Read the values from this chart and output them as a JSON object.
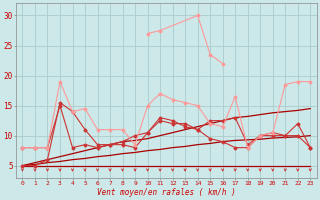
{
  "x": [
    0,
    1,
    2,
    3,
    4,
    5,
    6,
    7,
    8,
    9,
    10,
    11,
    12,
    13,
    14,
    15,
    16,
    17,
    18,
    19,
    20,
    21,
    22,
    23
  ],
  "line_flat": [
    5,
    5,
    5,
    5,
    5,
    5,
    5,
    5,
    5,
    5,
    5,
    5,
    5,
    5,
    5,
    5,
    5,
    5,
    5,
    5,
    5,
    5,
    5,
    5
  ],
  "line_slow": [
    5,
    5.2,
    5.5,
    5.7,
    6.0,
    6.2,
    6.5,
    6.7,
    7.0,
    7.2,
    7.5,
    7.7,
    8.0,
    8.2,
    8.5,
    8.7,
    9.0,
    9.2,
    9.3,
    9.4,
    9.6,
    9.7,
    9.8,
    10.0
  ],
  "line_med": [
    5,
    5.5,
    6.0,
    6.5,
    7.0,
    7.5,
    8.0,
    8.5,
    9.0,
    9.2,
    9.5,
    10.0,
    10.5,
    11.0,
    11.5,
    12.0,
    12.5,
    13.0,
    13.2,
    13.5,
    13.8,
    14.0,
    14.2,
    14.5
  ],
  "line_dark1": [
    8,
    8,
    8,
    15,
    8,
    8.5,
    8,
    8.5,
    8.5,
    8,
    10.5,
    12.5,
    12,
    12,
    11,
    12.5,
    12.5,
    13,
    8.5,
    10,
    10.5,
    10,
    10,
    8
  ],
  "line_dark2": [
    5,
    5,
    6,
    15.5,
    14,
    11,
    8.5,
    8.5,
    9,
    10,
    10.5,
    13,
    12.5,
    11.5,
    11,
    9.5,
    9,
    8,
    8,
    10,
    10,
    10,
    12,
    8
  ],
  "line_pink1": [
    8,
    8,
    8,
    19,
    14,
    14.5,
    11,
    11,
    11,
    8.5,
    15,
    17,
    16,
    15.5,
    15,
    12,
    11.5,
    16.5,
    8,
    10,
    10.5,
    18.5,
    19,
    19
  ],
  "line_pink2_x": [
    10,
    11,
    14,
    15,
    16
  ],
  "line_pink2_y": [
    27,
    27.5,
    30,
    23.5,
    22
  ],
  "arrows_x": [
    0,
    1,
    2,
    3,
    4,
    5,
    6,
    7,
    8,
    9,
    10,
    11,
    12,
    13,
    14,
    15,
    16,
    17,
    18,
    19,
    20,
    21,
    22,
    23
  ],
  "bg_color": "#cce8e8",
  "grid_color": "#aacccc",
  "dark_red": "#aa0000",
  "med_red": "#cc3333",
  "light_pink": "#ff9999",
  "arrow_color": "#cc3333",
  "xlabel": "Vent moyen/en rafales ( km/h )",
  "ylim": [
    3,
    32
  ],
  "xlim": [
    -0.5,
    23.5
  ],
  "yticks": [
    5,
    10,
    15,
    20,
    25,
    30
  ],
  "xticks": [
    0,
    1,
    2,
    3,
    4,
    5,
    6,
    7,
    8,
    9,
    10,
    11,
    12,
    13,
    14,
    15,
    16,
    17,
    18,
    19,
    20,
    21,
    22,
    23
  ]
}
